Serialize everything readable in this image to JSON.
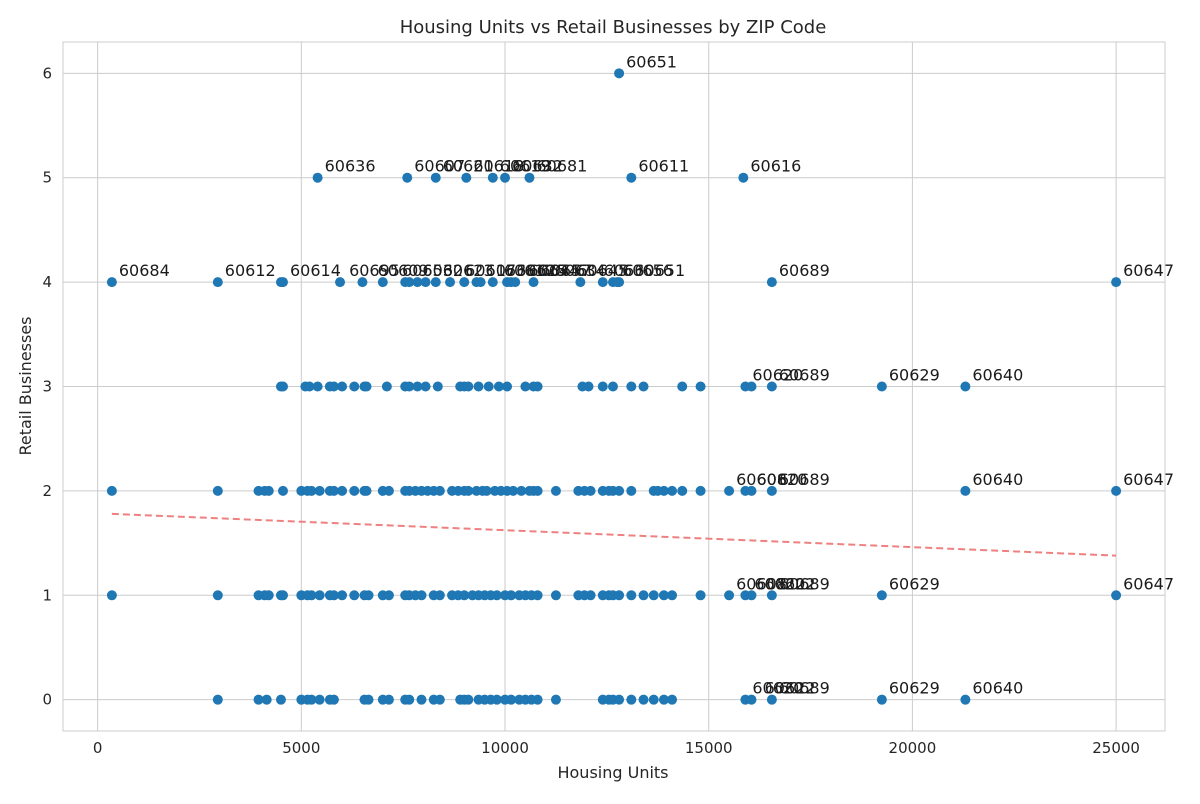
{
  "chart_data": {
    "type": "scatter",
    "title": "Housing Units vs Retail Businesses by ZIP Code",
    "xlabel": "Housing Units",
    "ylabel": "Retail Businesses",
    "xlim": [
      -850,
      26200
    ],
    "ylim": [
      -0.3,
      6.3
    ],
    "xticks": [
      0,
      5000,
      10000,
      15000,
      20000,
      25000
    ],
    "xtick_labels": [
      "0",
      "5000",
      "10000",
      "15000",
      "20000",
      "25000"
    ],
    "yticks": [
      0,
      1,
      2,
      3,
      4,
      5,
      6
    ],
    "ytick_labels": [
      "0",
      "1",
      "2",
      "3",
      "4",
      "5",
      "6"
    ],
    "grid": true,
    "point_color": "#1f77b4",
    "trend_color": "#f08080",
    "trend_line": {
      "x": [
        350,
        25000
      ],
      "y": [
        1.78,
        1.38
      ]
    },
    "points": [
      {
        "x": 12800,
        "y": 6
      },
      {
        "x": 5400,
        "y": 5
      },
      {
        "x": 7600,
        "y": 5
      },
      {
        "x": 8300,
        "y": 5
      },
      {
        "x": 9050,
        "y": 5
      },
      {
        "x": 9700,
        "y": 5
      },
      {
        "x": 10000,
        "y": 5
      },
      {
        "x": 10600,
        "y": 5
      },
      {
        "x": 13100,
        "y": 5
      },
      {
        "x": 15850,
        "y": 5
      },
      {
        "x": 350,
        "y": 4
      },
      {
        "x": 2950,
        "y": 4
      },
      {
        "x": 4500,
        "y": 4
      },
      {
        "x": 4550,
        "y": 4
      },
      {
        "x": 5950,
        "y": 4
      },
      {
        "x": 6500,
        "y": 4
      },
      {
        "x": 7000,
        "y": 4
      },
      {
        "x": 7550,
        "y": 4
      },
      {
        "x": 7650,
        "y": 4
      },
      {
        "x": 7850,
        "y": 4
      },
      {
        "x": 8050,
        "y": 4
      },
      {
        "x": 8300,
        "y": 4
      },
      {
        "x": 8650,
        "y": 4
      },
      {
        "x": 9000,
        "y": 4
      },
      {
        "x": 9300,
        "y": 4
      },
      {
        "x": 9400,
        "y": 4
      },
      {
        "x": 9700,
        "y": 4
      },
      {
        "x": 10050,
        "y": 4
      },
      {
        "x": 10150,
        "y": 4
      },
      {
        "x": 10250,
        "y": 4
      },
      {
        "x": 10700,
        "y": 4
      },
      {
        "x": 11850,
        "y": 4
      },
      {
        "x": 12400,
        "y": 4
      },
      {
        "x": 12650,
        "y": 4
      },
      {
        "x": 12750,
        "y": 4
      },
      {
        "x": 12800,
        "y": 4
      },
      {
        "x": 16550,
        "y": 4
      },
      {
        "x": 25000,
        "y": 4
      },
      {
        "x": 4500,
        "y": 3
      },
      {
        "x": 4550,
        "y": 3
      },
      {
        "x": 5100,
        "y": 3
      },
      {
        "x": 5200,
        "y": 3
      },
      {
        "x": 5400,
        "y": 3
      },
      {
        "x": 5700,
        "y": 3
      },
      {
        "x": 5800,
        "y": 3
      },
      {
        "x": 6000,
        "y": 3
      },
      {
        "x": 6300,
        "y": 3
      },
      {
        "x": 6550,
        "y": 3
      },
      {
        "x": 6600,
        "y": 3
      },
      {
        "x": 7100,
        "y": 3
      },
      {
        "x": 7550,
        "y": 3
      },
      {
        "x": 7650,
        "y": 3
      },
      {
        "x": 7850,
        "y": 3
      },
      {
        "x": 8050,
        "y": 3
      },
      {
        "x": 8350,
        "y": 3
      },
      {
        "x": 8900,
        "y": 3
      },
      {
        "x": 9000,
        "y": 3
      },
      {
        "x": 9100,
        "y": 3
      },
      {
        "x": 9350,
        "y": 3
      },
      {
        "x": 9600,
        "y": 3
      },
      {
        "x": 9850,
        "y": 3
      },
      {
        "x": 10050,
        "y": 3
      },
      {
        "x": 10500,
        "y": 3
      },
      {
        "x": 10700,
        "y": 3
      },
      {
        "x": 10800,
        "y": 3
      },
      {
        "x": 11900,
        "y": 3
      },
      {
        "x": 12050,
        "y": 3
      },
      {
        "x": 12400,
        "y": 3
      },
      {
        "x": 12650,
        "y": 3
      },
      {
        "x": 13100,
        "y": 3
      },
      {
        "x": 13400,
        "y": 3
      },
      {
        "x": 14350,
        "y": 3
      },
      {
        "x": 14800,
        "y": 3
      },
      {
        "x": 15900,
        "y": 3
      },
      {
        "x": 16050,
        "y": 3
      },
      {
        "x": 16550,
        "y": 3
      },
      {
        "x": 19250,
        "y": 3
      },
      {
        "x": 21300,
        "y": 3
      },
      {
        "x": 350,
        "y": 2
      },
      {
        "x": 2950,
        "y": 2
      },
      {
        "x": 3950,
        "y": 2
      },
      {
        "x": 4100,
        "y": 2
      },
      {
        "x": 4200,
        "y": 2
      },
      {
        "x": 4550,
        "y": 2
      },
      {
        "x": 5000,
        "y": 2
      },
      {
        "x": 5150,
        "y": 2
      },
      {
        "x": 5250,
        "y": 2
      },
      {
        "x": 5450,
        "y": 2
      },
      {
        "x": 5700,
        "y": 2
      },
      {
        "x": 5800,
        "y": 2
      },
      {
        "x": 6000,
        "y": 2
      },
      {
        "x": 6300,
        "y": 2
      },
      {
        "x": 6550,
        "y": 2
      },
      {
        "x": 6600,
        "y": 2
      },
      {
        "x": 7000,
        "y": 2
      },
      {
        "x": 7150,
        "y": 2
      },
      {
        "x": 7550,
        "y": 2
      },
      {
        "x": 7650,
        "y": 2
      },
      {
        "x": 7800,
        "y": 2
      },
      {
        "x": 7950,
        "y": 2
      },
      {
        "x": 8100,
        "y": 2
      },
      {
        "x": 8250,
        "y": 2
      },
      {
        "x": 8400,
        "y": 2
      },
      {
        "x": 8700,
        "y": 2
      },
      {
        "x": 8850,
        "y": 2
      },
      {
        "x": 9000,
        "y": 2
      },
      {
        "x": 9100,
        "y": 2
      },
      {
        "x": 9300,
        "y": 2
      },
      {
        "x": 9450,
        "y": 2
      },
      {
        "x": 9550,
        "y": 2
      },
      {
        "x": 9750,
        "y": 2
      },
      {
        "x": 9900,
        "y": 2
      },
      {
        "x": 10050,
        "y": 2
      },
      {
        "x": 10200,
        "y": 2
      },
      {
        "x": 10400,
        "y": 2
      },
      {
        "x": 10600,
        "y": 2
      },
      {
        "x": 10700,
        "y": 2
      },
      {
        "x": 10800,
        "y": 2
      },
      {
        "x": 11250,
        "y": 2
      },
      {
        "x": 11800,
        "y": 2
      },
      {
        "x": 11950,
        "y": 2
      },
      {
        "x": 12100,
        "y": 2
      },
      {
        "x": 12400,
        "y": 2
      },
      {
        "x": 12550,
        "y": 2
      },
      {
        "x": 12650,
        "y": 2
      },
      {
        "x": 12800,
        "y": 2
      },
      {
        "x": 13100,
        "y": 2
      },
      {
        "x": 13650,
        "y": 2
      },
      {
        "x": 13750,
        "y": 2
      },
      {
        "x": 13900,
        "y": 2
      },
      {
        "x": 14100,
        "y": 2
      },
      {
        "x": 14350,
        "y": 2
      },
      {
        "x": 14800,
        "y": 2
      },
      {
        "x": 15500,
        "y": 2
      },
      {
        "x": 15900,
        "y": 2
      },
      {
        "x": 16050,
        "y": 2
      },
      {
        "x": 16550,
        "y": 2
      },
      {
        "x": 21300,
        "y": 2
      },
      {
        "x": 25000,
        "y": 2
      },
      {
        "x": 350,
        "y": 1
      },
      {
        "x": 2950,
        "y": 1
      },
      {
        "x": 3950,
        "y": 1
      },
      {
        "x": 4100,
        "y": 1
      },
      {
        "x": 4200,
        "y": 1
      },
      {
        "x": 4500,
        "y": 1
      },
      {
        "x": 4550,
        "y": 1
      },
      {
        "x": 5000,
        "y": 1
      },
      {
        "x": 5150,
        "y": 1
      },
      {
        "x": 5250,
        "y": 1
      },
      {
        "x": 5450,
        "y": 1
      },
      {
        "x": 5700,
        "y": 1
      },
      {
        "x": 5800,
        "y": 1
      },
      {
        "x": 6000,
        "y": 1
      },
      {
        "x": 6300,
        "y": 1
      },
      {
        "x": 6550,
        "y": 1
      },
      {
        "x": 6650,
        "y": 1
      },
      {
        "x": 7000,
        "y": 1
      },
      {
        "x": 7150,
        "y": 1
      },
      {
        "x": 7550,
        "y": 1
      },
      {
        "x": 7650,
        "y": 1
      },
      {
        "x": 7800,
        "y": 1
      },
      {
        "x": 7950,
        "y": 1
      },
      {
        "x": 8250,
        "y": 1
      },
      {
        "x": 8400,
        "y": 1
      },
      {
        "x": 8700,
        "y": 1
      },
      {
        "x": 8850,
        "y": 1
      },
      {
        "x": 9000,
        "y": 1
      },
      {
        "x": 9200,
        "y": 1
      },
      {
        "x": 9350,
        "y": 1
      },
      {
        "x": 9500,
        "y": 1
      },
      {
        "x": 9650,
        "y": 1
      },
      {
        "x": 9800,
        "y": 1
      },
      {
        "x": 10000,
        "y": 1
      },
      {
        "x": 10150,
        "y": 1
      },
      {
        "x": 10350,
        "y": 1
      },
      {
        "x": 10500,
        "y": 1
      },
      {
        "x": 10650,
        "y": 1
      },
      {
        "x": 10800,
        "y": 1
      },
      {
        "x": 11250,
        "y": 1
      },
      {
        "x": 11800,
        "y": 1
      },
      {
        "x": 11950,
        "y": 1
      },
      {
        "x": 12100,
        "y": 1
      },
      {
        "x": 12400,
        "y": 1
      },
      {
        "x": 12550,
        "y": 1
      },
      {
        "x": 12650,
        "y": 1
      },
      {
        "x": 12800,
        "y": 1
      },
      {
        "x": 13100,
        "y": 1
      },
      {
        "x": 13400,
        "y": 1
      },
      {
        "x": 13650,
        "y": 1
      },
      {
        "x": 13900,
        "y": 1
      },
      {
        "x": 14100,
        "y": 1
      },
      {
        "x": 14800,
        "y": 1
      },
      {
        "x": 15500,
        "y": 1
      },
      {
        "x": 15900,
        "y": 1
      },
      {
        "x": 16050,
        "y": 1
      },
      {
        "x": 16550,
        "y": 1
      },
      {
        "x": 19250,
        "y": 1
      },
      {
        "x": 25000,
        "y": 1
      },
      {
        "x": 2950,
        "y": 0
      },
      {
        "x": 3950,
        "y": 0
      },
      {
        "x": 4150,
        "y": 0
      },
      {
        "x": 4500,
        "y": 0
      },
      {
        "x": 5000,
        "y": 0
      },
      {
        "x": 5150,
        "y": 0
      },
      {
        "x": 5250,
        "y": 0
      },
      {
        "x": 5450,
        "y": 0
      },
      {
        "x": 5700,
        "y": 0
      },
      {
        "x": 5800,
        "y": 0
      },
      {
        "x": 6550,
        "y": 0
      },
      {
        "x": 6650,
        "y": 0
      },
      {
        "x": 7000,
        "y": 0
      },
      {
        "x": 7150,
        "y": 0
      },
      {
        "x": 7550,
        "y": 0
      },
      {
        "x": 7650,
        "y": 0
      },
      {
        "x": 7950,
        "y": 0
      },
      {
        "x": 8250,
        "y": 0
      },
      {
        "x": 8400,
        "y": 0
      },
      {
        "x": 8900,
        "y": 0
      },
      {
        "x": 9000,
        "y": 0
      },
      {
        "x": 9100,
        "y": 0
      },
      {
        "x": 9350,
        "y": 0
      },
      {
        "x": 9500,
        "y": 0
      },
      {
        "x": 9650,
        "y": 0
      },
      {
        "x": 9800,
        "y": 0
      },
      {
        "x": 10000,
        "y": 0
      },
      {
        "x": 10150,
        "y": 0
      },
      {
        "x": 10350,
        "y": 0
      },
      {
        "x": 10500,
        "y": 0
      },
      {
        "x": 10650,
        "y": 0
      },
      {
        "x": 10800,
        "y": 0
      },
      {
        "x": 11250,
        "y": 0
      },
      {
        "x": 12400,
        "y": 0
      },
      {
        "x": 12550,
        "y": 0
      },
      {
        "x": 12650,
        "y": 0
      },
      {
        "x": 12800,
        "y": 0
      },
      {
        "x": 13100,
        "y": 0
      },
      {
        "x": 13400,
        "y": 0
      },
      {
        "x": 13650,
        "y": 0
      },
      {
        "x": 13900,
        "y": 0
      },
      {
        "x": 14100,
        "y": 0
      },
      {
        "x": 15900,
        "y": 0
      },
      {
        "x": 16050,
        "y": 0
      },
      {
        "x": 16550,
        "y": 0
      },
      {
        "x": 19250,
        "y": 0
      },
      {
        "x": 21300,
        "y": 0
      }
    ],
    "annotations": [
      {
        "x": 12800,
        "y": 6,
        "text": "60651"
      },
      {
        "x": 5400,
        "y": 5,
        "text": "60636"
      },
      {
        "x": 7600,
        "y": 5,
        "text": "60607"
      },
      {
        "x": 8300,
        "y": 5,
        "text": "60621"
      },
      {
        "x": 9050,
        "y": 5,
        "text": "60618"
      },
      {
        "x": 9700,
        "y": 5,
        "text": "60619"
      },
      {
        "x": 10000,
        "y": 5,
        "text": "60632"
      },
      {
        "x": 10600,
        "y": 5,
        "text": "60681"
      },
      {
        "x": 13100,
        "y": 5,
        "text": "60611"
      },
      {
        "x": 15850,
        "y": 5,
        "text": "60616"
      },
      {
        "x": 350,
        "y": 4,
        "text": "60684"
      },
      {
        "x": 2950,
        "y": 4,
        "text": "60612"
      },
      {
        "x": 4550,
        "y": 4,
        "text": "60614"
      },
      {
        "x": 6000,
        "y": 4,
        "text": "60695"
      },
      {
        "x": 6700,
        "y": 4,
        "text": "60609"
      },
      {
        "x": 7300,
        "y": 4,
        "text": "60653"
      },
      {
        "x": 7800,
        "y": 4,
        "text": "60626"
      },
      {
        "x": 8300,
        "y": 4,
        "text": "60623"
      },
      {
        "x": 8850,
        "y": 4,
        "text": "60617"
      },
      {
        "x": 9350,
        "y": 4,
        "text": "60638"
      },
      {
        "x": 9800,
        "y": 4,
        "text": "60610"
      },
      {
        "x": 10100,
        "y": 4,
        "text": "60625"
      },
      {
        "x": 10400,
        "y": 4,
        "text": "60644"
      },
      {
        "x": 10700,
        "y": 4,
        "text": "60657"
      },
      {
        "x": 11050,
        "y": 4,
        "text": "60634"
      },
      {
        "x": 11600,
        "y": 4,
        "text": "60645"
      },
      {
        "x": 12250,
        "y": 4,
        "text": "60630"
      },
      {
        "x": 12700,
        "y": 4,
        "text": "60656"
      },
      {
        "x": 13000,
        "y": 4,
        "text": "60651"
      },
      {
        "x": 16550,
        "y": 4,
        "text": "60689"
      },
      {
        "x": 25000,
        "y": 4,
        "text": "60647"
      },
      {
        "x": 15900,
        "y": 3,
        "text": "60620"
      },
      {
        "x": 16550,
        "y": 3,
        "text": "60689"
      },
      {
        "x": 19250,
        "y": 3,
        "text": "60629"
      },
      {
        "x": 21300,
        "y": 3,
        "text": "60640"
      },
      {
        "x": 15500,
        "y": 2,
        "text": "60608"
      },
      {
        "x": 16000,
        "y": 2,
        "text": "60620"
      },
      {
        "x": 16550,
        "y": 2,
        "text": "60689"
      },
      {
        "x": 21300,
        "y": 2,
        "text": "60640"
      },
      {
        "x": 25000,
        "y": 2,
        "text": "60647"
      },
      {
        "x": 15500,
        "y": 1,
        "text": "60608"
      },
      {
        "x": 15950,
        "y": 1,
        "text": "60620"
      },
      {
        "x": 16200,
        "y": 1,
        "text": "60622"
      },
      {
        "x": 16550,
        "y": 1,
        "text": "60689"
      },
      {
        "x": 19250,
        "y": 1,
        "text": "60629"
      },
      {
        "x": 25000,
        "y": 1,
        "text": "60647"
      },
      {
        "x": 15900,
        "y": 0,
        "text": "60620"
      },
      {
        "x": 16200,
        "y": 0,
        "text": "60622"
      },
      {
        "x": 16550,
        "y": 0,
        "text": "60689"
      },
      {
        "x": 19250,
        "y": 0,
        "text": "60629"
      },
      {
        "x": 21300,
        "y": 0,
        "text": "60640"
      }
    ]
  }
}
